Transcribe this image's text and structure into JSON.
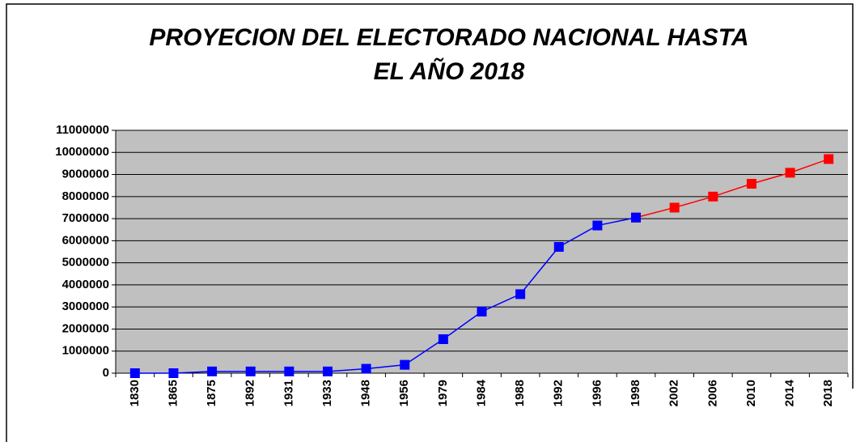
{
  "chart_data": {
    "type": "line",
    "title": [
      "PROYECION DEL ELECTORADO NACIONAL HASTA",
      "EL AÑO 2018"
    ],
    "categories": [
      "1830",
      "1865",
      "1875",
      "1892",
      "1931",
      "1933",
      "1948",
      "1956",
      "1979",
      "1984",
      "1988",
      "1992",
      "1996",
      "1998",
      "2002",
      "2006",
      "2010",
      "2014",
      "2018"
    ],
    "series": [
      {
        "name": null,
        "color": "#0000ff",
        "values": [
          0,
          0,
          80000,
          80000,
          80000,
          80000,
          200000,
          380000,
          1540000,
          2790000,
          3580000,
          5720000,
          6690000,
          7050000,
          null,
          null,
          null,
          null,
          null
        ]
      },
      {
        "name": null,
        "color": "#ff0000",
        "values": [
          null,
          null,
          null,
          null,
          null,
          null,
          null,
          null,
          null,
          null,
          null,
          null,
          null,
          7050000,
          7500000,
          8000000,
          8580000,
          9080000,
          9700000
        ]
      }
    ],
    "ylim": [
      0,
      11000000
    ],
    "yticks": [
      0,
      1000000,
      2000000,
      3000000,
      4000000,
      5000000,
      6000000,
      7000000,
      8000000,
      9000000,
      10000000,
      11000000
    ],
    "grid": true
  }
}
